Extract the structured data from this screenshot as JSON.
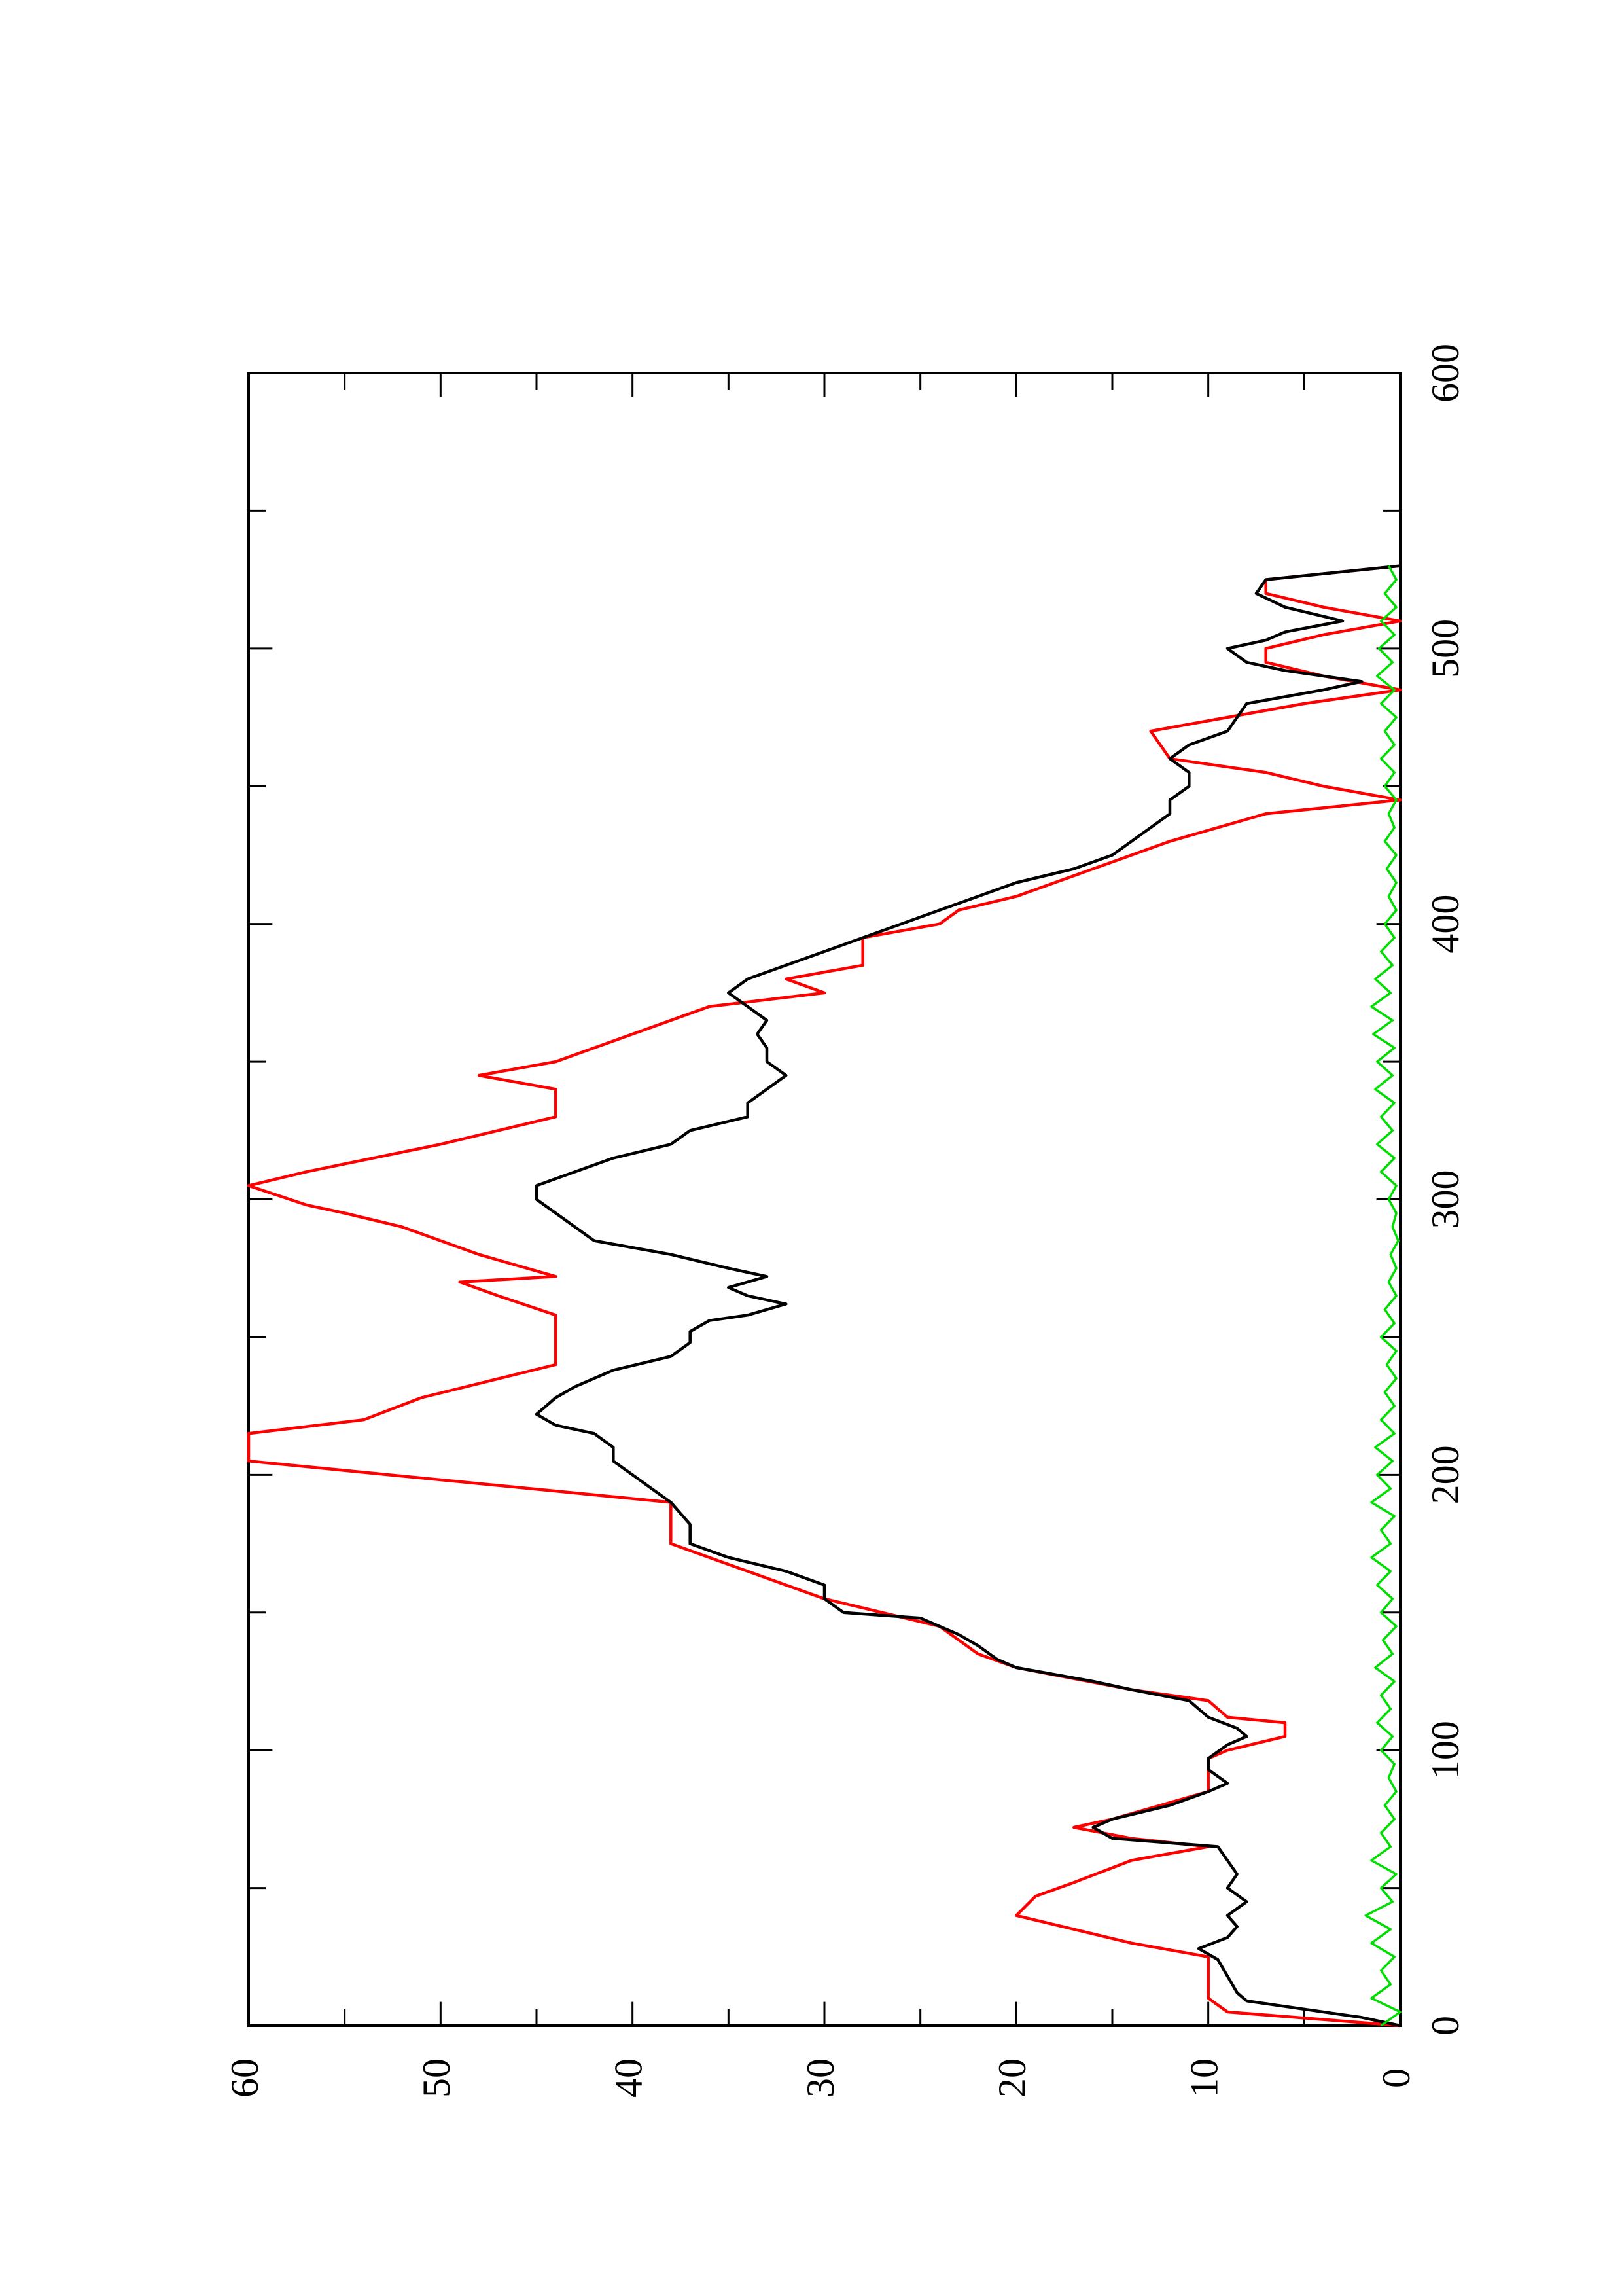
{
  "chart_data": {
    "type": "line",
    "orientation": "rotated-90-counterclockwise",
    "title": "",
    "xlabel": "",
    "ylabel": "",
    "xlim": [
      0,
      600
    ],
    "ylim": [
      0,
      60
    ],
    "x_ticks_major": [
      0,
      100,
      200,
      300,
      400,
      500,
      600
    ],
    "x_tick_labels": [
      "0",
      "100",
      "200",
      "300",
      "400",
      "500",
      "600"
    ],
    "x_ticks_minor": [
      50,
      150,
      250,
      350,
      450,
      550
    ],
    "y_ticks_major": [
      0,
      10,
      20,
      30,
      40,
      50,
      60
    ],
    "y_tick_labels": [
      "0",
      "10",
      "20",
      "30",
      "40",
      "50",
      "60"
    ],
    "y_ticks_minor": [
      5,
      15,
      25,
      35,
      45,
      55
    ],
    "grid": false,
    "legend": "none",
    "series": [
      {
        "color": "#ff0000",
        "style": "step",
        "points": [
          [
            0,
            0
          ],
          [
            5,
            9
          ],
          [
            10,
            10
          ],
          [
            25,
            10
          ],
          [
            30,
            14
          ],
          [
            35,
            17
          ],
          [
            40,
            20
          ],
          [
            47,
            19
          ],
          [
            52,
            17
          ],
          [
            60,
            14
          ],
          [
            65,
            10
          ],
          [
            68,
            14
          ],
          [
            72,
            17
          ],
          [
            75,
            15
          ],
          [
            85,
            10
          ],
          [
            97,
            10
          ],
          [
            100,
            9
          ],
          [
            105,
            6
          ],
          [
            110,
            6
          ],
          [
            112,
            9
          ],
          [
            118,
            10
          ],
          [
            122,
            14
          ],
          [
            130,
            20
          ],
          [
            135,
            22
          ],
          [
            140,
            23
          ],
          [
            145,
            24
          ],
          [
            155,
            30
          ],
          [
            160,
            32
          ],
          [
            170,
            36
          ],
          [
            175,
            38
          ],
          [
            190,
            38
          ],
          [
            205,
            60
          ],
          [
            215,
            60
          ],
          [
            220,
            54
          ],
          [
            228,
            51
          ],
          [
            240,
            44
          ],
          [
            258,
            44
          ],
          [
            265,
            47
          ],
          [
            270,
            49
          ],
          [
            272,
            44
          ],
          [
            280,
            48
          ],
          [
            290,
            52
          ],
          [
            295,
            55
          ],
          [
            298,
            57
          ],
          [
            305,
            60
          ],
          [
            310,
            57
          ],
          [
            320,
            50
          ],
          [
            330,
            44
          ],
          [
            340,
            44
          ],
          [
            345,
            48
          ],
          [
            350,
            44
          ],
          [
            360,
            40
          ],
          [
            370,
            36
          ],
          [
            375,
            30
          ],
          [
            380,
            32
          ],
          [
            385,
            28
          ],
          [
            395,
            28
          ],
          [
            400,
            24
          ],
          [
            405,
            23
          ],
          [
            410,
            20
          ],
          [
            415,
            18
          ],
          [
            425,
            14
          ],
          [
            430,
            12
          ],
          [
            440,
            7
          ],
          [
            445,
            0
          ],
          [
            450,
            4
          ],
          [
            455,
            7
          ],
          [
            460,
            12
          ],
          [
            470,
            13
          ],
          [
            475,
            9
          ],
          [
            480,
            5
          ],
          [
            485,
            0
          ],
          [
            490,
            4
          ],
          [
            495,
            7
          ],
          [
            500,
            7
          ],
          [
            505,
            4
          ],
          [
            510,
            0
          ],
          [
            515,
            4
          ],
          [
            520,
            7
          ],
          [
            525,
            7
          ],
          [
            530,
            0
          ]
        ]
      },
      {
        "color": "#000000",
        "style": "line",
        "points": [
          [
            0,
            0
          ],
          [
            3,
            2
          ],
          [
            6,
            5
          ],
          [
            9,
            8
          ],
          [
            12,
            8.5
          ],
          [
            18,
            9
          ],
          [
            24,
            9.5
          ],
          [
            28,
            10.5
          ],
          [
            32,
            9
          ],
          [
            36,
            8.5
          ],
          [
            40,
            9
          ],
          [
            45,
            8
          ],
          [
            50,
            9
          ],
          [
            55,
            8.5
          ],
          [
            60,
            9
          ],
          [
            65,
            9.5
          ],
          [
            68,
            15
          ],
          [
            72,
            16
          ],
          [
            75,
            15
          ],
          [
            80,
            12
          ],
          [
            85,
            10
          ],
          [
            88,
            9
          ],
          [
            93,
            10
          ],
          [
            97,
            10
          ],
          [
            102,
            9
          ],
          [
            105,
            8
          ],
          [
            108,
            8.5
          ],
          [
            112,
            10
          ],
          [
            118,
            11
          ],
          [
            122,
            14
          ],
          [
            125,
            16
          ],
          [
            130,
            20
          ],
          [
            133,
            21
          ],
          [
            138,
            22
          ],
          [
            142,
            23
          ],
          [
            148,
            25
          ],
          [
            150,
            29
          ],
          [
            155,
            30
          ],
          [
            160,
            30
          ],
          [
            165,
            32
          ],
          [
            170,
            35
          ],
          [
            175,
            37
          ],
          [
            182,
            37
          ],
          [
            190,
            38
          ],
          [
            195,
            39
          ],
          [
            200,
            40
          ],
          [
            205,
            41
          ],
          [
            210,
            41
          ],
          [
            215,
            42
          ],
          [
            218,
            44
          ],
          [
            222,
            45
          ],
          [
            228,
            44
          ],
          [
            232,
            43
          ],
          [
            238,
            41
          ],
          [
            243,
            38
          ],
          [
            248,
            37
          ],
          [
            252,
            37
          ],
          [
            256,
            36
          ],
          [
            258,
            34
          ],
          [
            262,
            32
          ],
          [
            265,
            34
          ],
          [
            268,
            35
          ],
          [
            272,
            33
          ],
          [
            275,
            35
          ],
          [
            280,
            38
          ],
          [
            285,
            42
          ],
          [
            290,
            43
          ],
          [
            295,
            44
          ],
          [
            300,
            45
          ],
          [
            305,
            45
          ],
          [
            310,
            43
          ],
          [
            315,
            41
          ],
          [
            320,
            38
          ],
          [
            325,
            37
          ],
          [
            330,
            34
          ],
          [
            335,
            34
          ],
          [
            340,
            33
          ],
          [
            345,
            32
          ],
          [
            350,
            33
          ],
          [
            355,
            33
          ],
          [
            360,
            33.5
          ],
          [
            365,
            33
          ],
          [
            370,
            34
          ],
          [
            375,
            35
          ],
          [
            380,
            34
          ],
          [
            385,
            32
          ],
          [
            390,
            30
          ],
          [
            395,
            28
          ],
          [
            400,
            26
          ],
          [
            405,
            24
          ],
          [
            410,
            22
          ],
          [
            415,
            20
          ],
          [
            420,
            17
          ],
          [
            425,
            15
          ],
          [
            430,
            14
          ],
          [
            435,
            13
          ],
          [
            440,
            12
          ],
          [
            445,
            12
          ],
          [
            450,
            11
          ],
          [
            455,
            11
          ],
          [
            460,
            12
          ],
          [
            465,
            11
          ],
          [
            470,
            9
          ],
          [
            475,
            8.5
          ],
          [
            480,
            8
          ],
          [
            485,
            4
          ],
          [
            488,
            2
          ],
          [
            492,
            6
          ],
          [
            495,
            8
          ],
          [
            500,
            9
          ],
          [
            503,
            7
          ],
          [
            506,
            6
          ],
          [
            510,
            3
          ],
          [
            515,
            6
          ],
          [
            520,
            7.5
          ],
          [
            525,
            7
          ],
          [
            530,
            0
          ]
        ]
      },
      {
        "color": "#00dd00",
        "style": "noisy-line",
        "points": [
          [
            0,
            1
          ],
          [
            5,
            0
          ],
          [
            10,
            1.5
          ],
          [
            15,
            0.5
          ],
          [
            20,
            1
          ],
          [
            25,
            0.3
          ],
          [
            30,
            1.5
          ],
          [
            35,
            0.5
          ],
          [
            40,
            1.8
          ],
          [
            45,
            0.4
          ],
          [
            50,
            1
          ],
          [
            55,
            0.2
          ],
          [
            60,
            1.5
          ],
          [
            65,
            0.5
          ],
          [
            70,
            1
          ],
          [
            75,
            0.3
          ],
          [
            80,
            0.8
          ],
          [
            85,
            0.2
          ],
          [
            90,
            0.6
          ],
          [
            95,
            0.3
          ],
          [
            100,
            1
          ],
          [
            105,
            0.4
          ],
          [
            110,
            1.2
          ],
          [
            115,
            0.5
          ],
          [
            120,
            1
          ],
          [
            125,
            0.3
          ],
          [
            130,
            1.3
          ],
          [
            135,
            0.4
          ],
          [
            140,
            0.9
          ],
          [
            145,
            0.2
          ],
          [
            150,
            1
          ],
          [
            155,
            0.4
          ],
          [
            160,
            1.2
          ],
          [
            165,
            0.5
          ],
          [
            170,
            1.5
          ],
          [
            175,
            0.5
          ],
          [
            180,
            1
          ],
          [
            185,
            0.3
          ],
          [
            190,
            1.5
          ],
          [
            195,
            0.5
          ],
          [
            200,
            1.2
          ],
          [
            205,
            0.4
          ],
          [
            210,
            1.3
          ],
          [
            215,
            0.3
          ],
          [
            220,
            1
          ],
          [
            225,
            0.3
          ],
          [
            230,
            0.8
          ],
          [
            235,
            0.2
          ],
          [
            240,
            0.7
          ],
          [
            245,
            0.2
          ],
          [
            250,
            1
          ],
          [
            255,
            0.3
          ],
          [
            260,
            0.8
          ],
          [
            265,
            0.2
          ],
          [
            270,
            0.6
          ],
          [
            275,
            0.2
          ],
          [
            280,
            0.5
          ],
          [
            285,
            0.1
          ],
          [
            290,
            0.4
          ],
          [
            295,
            0.2
          ],
          [
            300,
            0.6
          ],
          [
            305,
            0.2
          ],
          [
            310,
            1
          ],
          [
            315,
            0.3
          ],
          [
            320,
            1.2
          ],
          [
            325,
            0.4
          ],
          [
            330,
            1
          ],
          [
            335,
            0.3
          ],
          [
            340,
            1.3
          ],
          [
            345,
            0.4
          ],
          [
            350,
            1.2
          ],
          [
            355,
            0.3
          ],
          [
            360,
            1.4
          ],
          [
            365,
            0.4
          ],
          [
            370,
            1.5
          ],
          [
            375,
            0.5
          ],
          [
            380,
            1.3
          ],
          [
            385,
            0.4
          ],
          [
            390,
            1
          ],
          [
            395,
            0.3
          ],
          [
            400,
            0.8
          ],
          [
            405,
            0.2
          ],
          [
            410,
            0.6
          ],
          [
            415,
            0.2
          ],
          [
            420,
            0.7
          ],
          [
            425,
            0.2
          ],
          [
            430,
            0.8
          ],
          [
            435,
            0.3
          ],
          [
            440,
            0.6
          ],
          [
            445,
            0.2
          ],
          [
            450,
            0.8
          ],
          [
            455,
            0.3
          ],
          [
            460,
            1
          ],
          [
            465,
            0.3
          ],
          [
            470,
            0.8
          ],
          [
            475,
            0.2
          ],
          [
            480,
            1
          ],
          [
            485,
            0.3
          ],
          [
            490,
            1.2
          ],
          [
            495,
            0.4
          ],
          [
            500,
            1.1
          ],
          [
            505,
            0.3
          ],
          [
            510,
            1
          ],
          [
            515,
            0.2
          ],
          [
            520,
            0.8
          ],
          [
            525,
            0.2
          ],
          [
            530,
            0.6
          ]
        ]
      }
    ]
  }
}
